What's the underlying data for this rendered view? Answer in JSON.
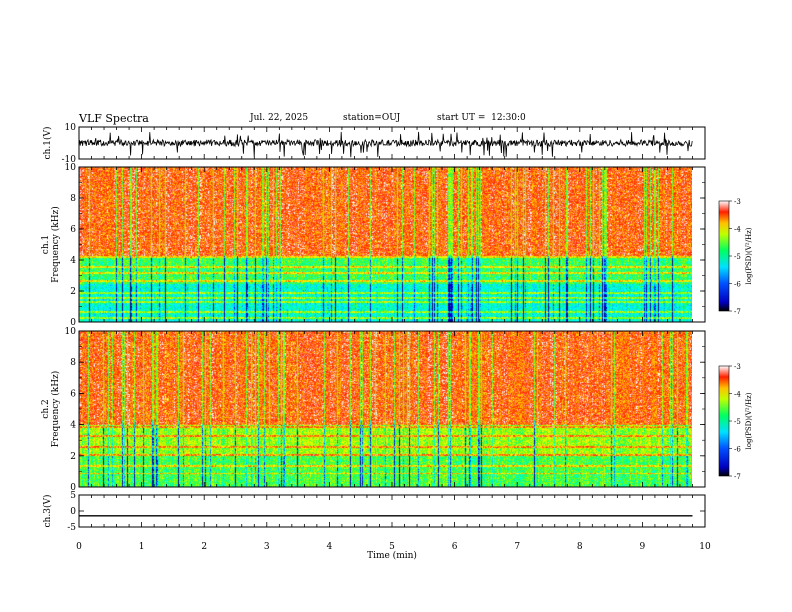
{
  "header": {
    "title": "VLF Spectra",
    "date": "Jul. 22, 2025",
    "station": "station=OUJ",
    "start": "start UT =  12:30:0"
  },
  "colors": {
    "spectrogram_scale": [
      "#000080",
      "#0000ff",
      "#00b4ff",
      "#00ffff",
      "#00ff80",
      "#80ff00",
      "#ffff00",
      "#ffa000",
      "#ff2000",
      "#ffffff"
    ]
  },
  "chart_data": [
    {
      "type": "line",
      "name": "ch1-waveform",
      "ylabel": "ch.1(V)",
      "ylim": [
        -10,
        10
      ],
      "y_ticks": [
        "10",
        "-10"
      ],
      "xlim": [
        0,
        10
      ],
      "baseline": 0,
      "x": [
        0,
        1,
        2,
        3,
        4,
        5,
        6,
        7,
        8,
        9,
        9.8
      ],
      "y": [
        0,
        0,
        0,
        0,
        0,
        0,
        0,
        0,
        0,
        0,
        0
      ]
    },
    {
      "type": "heatmap",
      "name": "ch1-spectrogram",
      "ylabel": "ch.1\nFrequency (kHz)",
      "y_ticks": [
        "0",
        "2",
        "4",
        "6",
        "8",
        "10"
      ],
      "ylim": [
        0,
        10
      ],
      "xlim": [
        0,
        10
      ],
      "data_xmax": 9.8,
      "colorbar": {
        "label": "log(PSD)(V²/Hz)",
        "range": [
          -7,
          -3
        ],
        "ticks": [
          "-3",
          "-4",
          "-5",
          "-6",
          "-7"
        ]
      }
    },
    {
      "type": "heatmap",
      "name": "ch2-spectrogram",
      "ylabel": "ch.2\nFrequency (kHz)",
      "y_ticks": [
        "0",
        "2",
        "4",
        "6",
        "8",
        "10"
      ],
      "ylim": [
        0,
        10
      ],
      "xlim": [
        0,
        10
      ],
      "data_xmax": 9.8,
      "colorbar": {
        "label": "log(PSD)(V²/Hz)",
        "range": [
          -7,
          -3
        ],
        "ticks": [
          "-3",
          "-4",
          "-5",
          "-6",
          "-7"
        ]
      }
    },
    {
      "type": "line",
      "name": "ch3-waveform",
      "ylabel": "ch.3(V)",
      "ylim": [
        -5,
        5
      ],
      "y_ticks": [
        "5",
        "0",
        "-5"
      ],
      "xlim": [
        0,
        10
      ],
      "x": [
        0,
        9.8
      ],
      "y": [
        -1.5,
        -1.5
      ],
      "xlabel": "Time (min)",
      "x_ticks": [
        "0",
        "1",
        "2",
        "3",
        "4",
        "5",
        "6",
        "7",
        "8",
        "9",
        "10"
      ]
    }
  ]
}
